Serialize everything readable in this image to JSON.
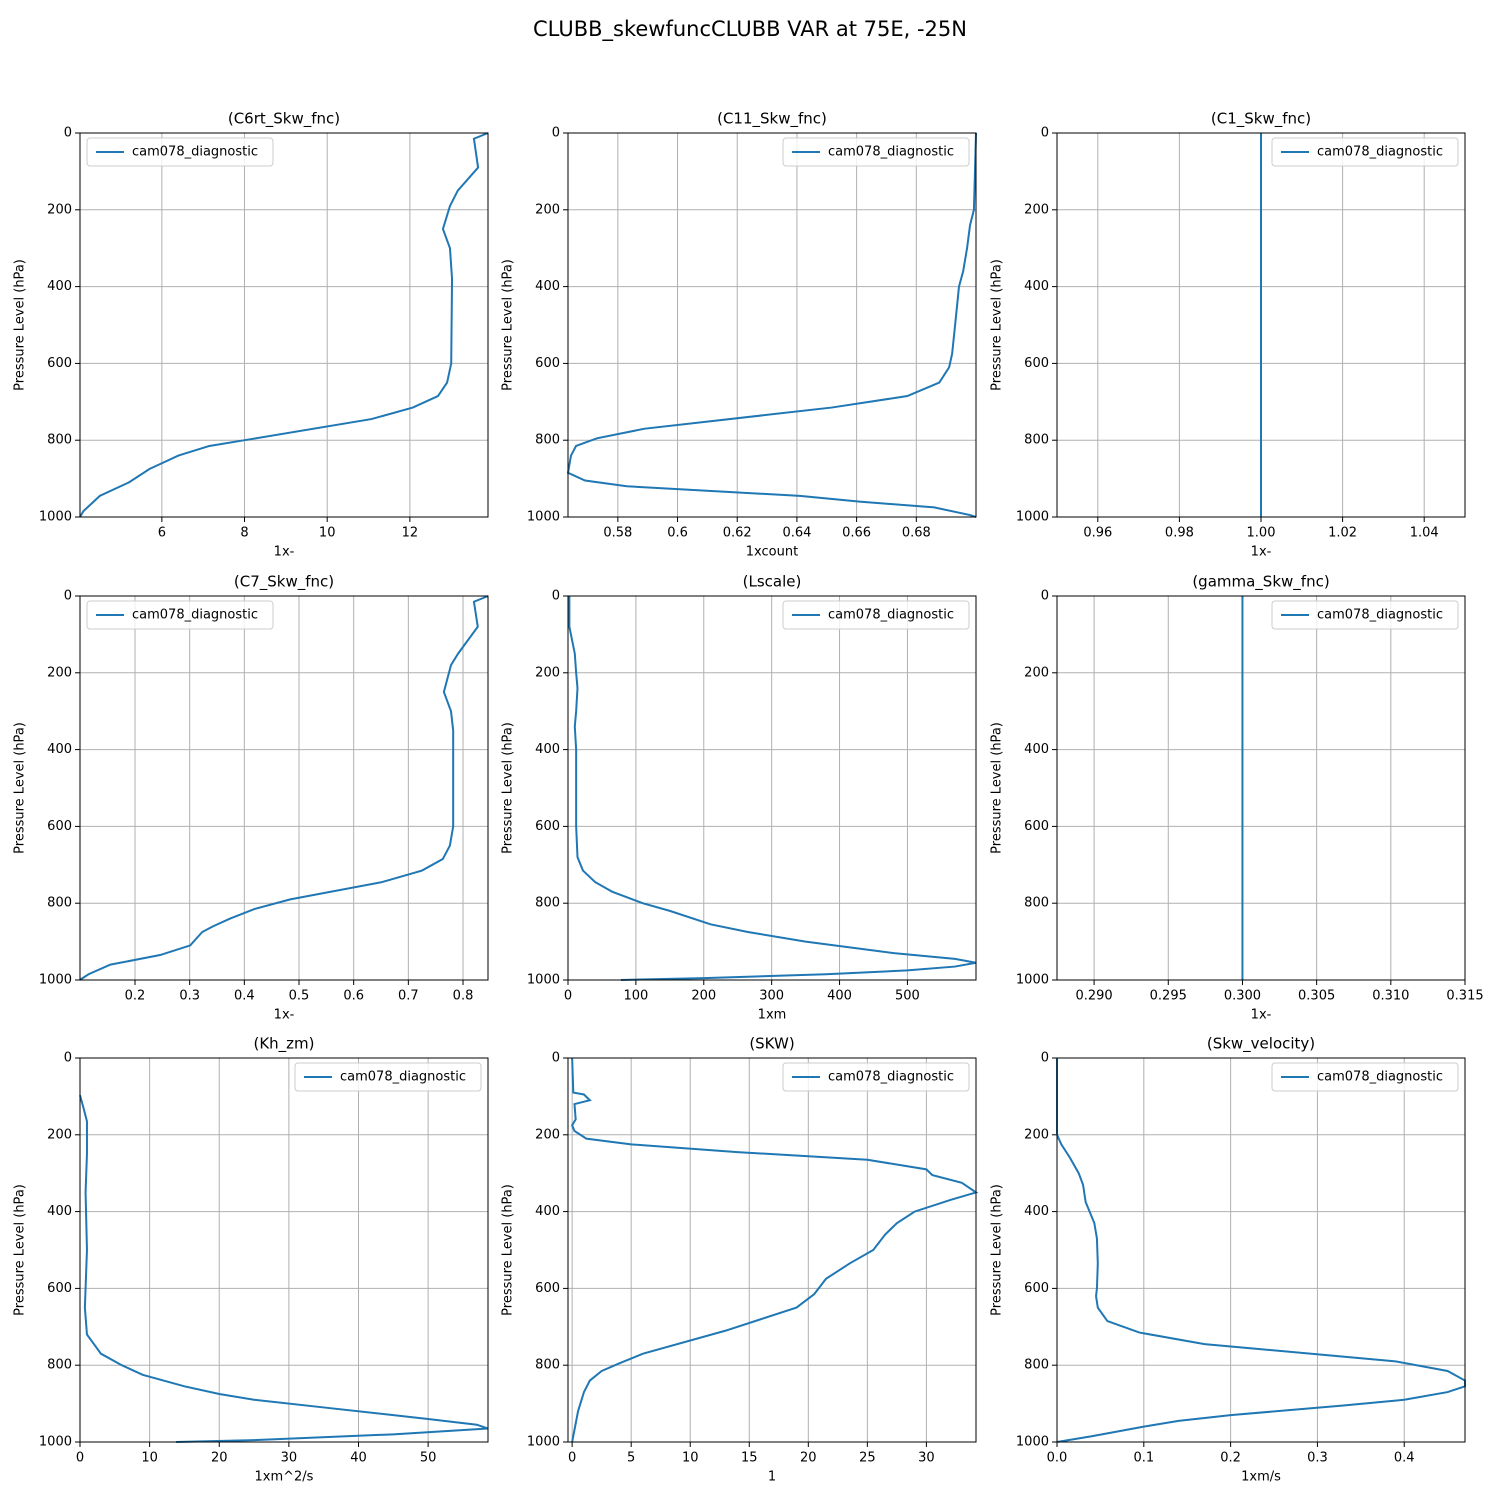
{
  "title": "CLUBB_skewfuncCLUBB VAR at 75E, -25N",
  "chart_data": [
    {
      "type": "line",
      "title": "(C6rt_Skw_fnc)",
      "xlabel": "1x-",
      "ylabel": "Pressure Level (hPa)",
      "legend": "upper left",
      "grid": true,
      "y_inverted": true,
      "xlim": [
        4.02,
        13.89
      ],
      "xticks": [
        6,
        8,
        10,
        12
      ],
      "ylim": [
        0,
        1000
      ],
      "yticks": [
        0,
        200,
        400,
        600,
        800,
        1000
      ],
      "y": [
        0,
        15,
        90,
        150,
        190,
        250,
        300,
        380,
        600,
        650,
        685,
        715,
        745,
        800,
        815,
        840,
        860,
        875,
        910,
        945,
        985,
        1000
      ],
      "series": [
        {
          "name": "cam078_diagnostic",
          "color": "#1f77b4",
          "values": [
            13.89,
            13.55,
            13.65,
            13.16,
            12.97,
            12.8,
            12.97,
            13.02,
            13.0,
            12.9,
            12.68,
            12.07,
            11.07,
            8.0,
            7.15,
            6.4,
            6.0,
            5.7,
            5.2,
            4.5,
            4.1,
            4.02
          ]
        }
      ]
    },
    {
      "type": "line",
      "title": "(C11_Skw_fnc)",
      "xlabel": "1xcount",
      "ylabel": "Pressure Level (hPa)",
      "legend": "upper right",
      "grid": true,
      "y_inverted": true,
      "xlim": [
        0.5633,
        0.7
      ],
      "xticks": [
        0.58,
        0.6,
        0.62,
        0.64,
        0.66,
        0.68
      ],
      "ylim": [
        0,
        1000
      ],
      "yticks": [
        0,
        200,
        400,
        600,
        800,
        1000
      ],
      "y": [
        0,
        200,
        240,
        300,
        360,
        400,
        500,
        575,
        610,
        650,
        685,
        715,
        770,
        795,
        815,
        840,
        885,
        905,
        920,
        945,
        960,
        975,
        995,
        1000
      ],
      "series": [
        {
          "name": "cam078_diagnostic",
          "color": "#1f77b4",
          "values": [
            0.7,
            0.6993,
            0.698,
            0.697,
            0.6957,
            0.6943,
            0.693,
            0.692,
            0.691,
            0.6877,
            0.677,
            0.6516,
            0.589,
            0.573,
            0.566,
            0.5643,
            0.5633,
            0.569,
            0.583,
            0.641,
            0.661,
            0.686,
            0.698,
            0.7
          ]
        }
      ]
    },
    {
      "type": "line",
      "title": "(C1_Skw_fnc)",
      "xlabel": "1x-",
      "ylabel": "Pressure Level (hPa)",
      "legend": "upper right",
      "grid": true,
      "y_inverted": true,
      "xlim": [
        0.95,
        1.05
      ],
      "xticks": [
        0.96,
        0.98,
        {
          "value": 1.0,
          "label": "1.00"
        },
        1.02,
        1.04
      ],
      "ylim": [
        0,
        1000
      ],
      "yticks": [
        0,
        200,
        400,
        600,
        800,
        1000
      ],
      "y": [
        0,
        500,
        1000
      ],
      "series": [
        {
          "name": "cam078_diagnostic",
          "color": "#1f77b4",
          "values": [
            1.0,
            1.0,
            1.0
          ]
        }
      ]
    },
    {
      "type": "line",
      "title": "(C7_Skw_fnc)",
      "xlabel": "1x-",
      "ylabel": "Pressure Level (hPa)",
      "legend": "upper left",
      "grid": true,
      "y_inverted": true,
      "xlim": [
        0.0994,
        0.8457
      ],
      "xticks": [
        0.2,
        0.3,
        0.4,
        0.5,
        0.6,
        0.7,
        0.8
      ],
      "ylim": [
        0,
        1000
      ],
      "yticks": [
        0,
        200,
        400,
        600,
        800,
        1000
      ],
      "y": [
        0,
        15,
        80,
        150,
        180,
        250,
        300,
        350,
        600,
        650,
        685,
        715,
        745,
        790,
        815,
        840,
        860,
        875,
        910,
        935,
        960,
        985,
        1000
      ],
      "series": [
        {
          "name": "cam078_diagnostic",
          "color": "#1f77b4",
          "values": [
            0.846,
            0.82,
            0.827,
            0.791,
            0.778,
            0.765,
            0.778,
            0.782,
            0.782,
            0.776,
            0.763,
            0.725,
            0.652,
            0.484,
            0.419,
            0.374,
            0.343,
            0.323,
            0.301,
            0.246,
            0.155,
            0.115,
            0.099
          ]
        }
      ]
    },
    {
      "type": "line",
      "title": "(Lscale)",
      "xlabel": "1xm",
      "ylabel": "Pressure Level (hPa)",
      "legend": "upper right",
      "grid": true,
      "y_inverted": true,
      "xlim": [
        0,
        601
      ],
      "xticks": [
        0,
        100,
        200,
        300,
        400,
        500
      ],
      "ylim": [
        0,
        1000
      ],
      "yticks": [
        0,
        200,
        400,
        600,
        800,
        1000
      ],
      "y": [
        0,
        80,
        150,
        200,
        240,
        300,
        340,
        400,
        600,
        680,
        715,
        745,
        770,
        800,
        820,
        855,
        875,
        900,
        930,
        945,
        955,
        965,
        975,
        985,
        995,
        1000
      ],
      "series": [
        {
          "name": "cam078_diagnostic",
          "color": "#1f77b4",
          "values": [
            2,
            2,
            10,
            12,
            14,
            12,
            10,
            12,
            12,
            14,
            22,
            40,
            65,
            110,
            150,
            210,
            265,
            350,
            480,
            570,
            601,
            570,
            500,
            380,
            200,
            78
          ]
        }
      ]
    },
    {
      "type": "line",
      "title": "(gamma_Skw_fnc)",
      "xlabel": "1x-",
      "ylabel": "Pressure Level (hPa)",
      "legend": "upper right",
      "grid": true,
      "y_inverted": true,
      "xlim": [
        0.2875,
        0.315
      ],
      "xticks": [
        {
          "value": 0.29,
          "label": "0.290"
        },
        0.295,
        {
          "value": 0.3,
          "label": "0.300"
        },
        0.305,
        {
          "value": 0.31,
          "label": "0.310"
        },
        0.315
      ],
      "ylim": [
        0,
        1000
      ],
      "yticks": [
        0,
        200,
        400,
        600,
        800,
        1000
      ],
      "y": [
        0,
        500,
        1000
      ],
      "series": [
        {
          "name": "cam078_diagnostic",
          "color": "#1f77b4",
          "values": [
            0.3,
            0.3,
            0.3
          ]
        }
      ]
    },
    {
      "type": "line",
      "title": "(Kh_zm)",
      "xlabel": "1xm^2/s",
      "ylabel": "Pressure Level (hPa)",
      "legend": "upper right",
      "grid": true,
      "y_inverted": true,
      "xlim": [
        0,
        58.6
      ],
      "xticks": [
        0,
        10,
        20,
        30,
        40,
        50
      ],
      "ylim": [
        0,
        1000
      ],
      "yticks": [
        0,
        200,
        400,
        600,
        800,
        1000
      ],
      "y": [
        97,
        130,
        165,
        200,
        250,
        350,
        500,
        650,
        720,
        745,
        770,
        800,
        825,
        855,
        875,
        890,
        910,
        940,
        955,
        965,
        980,
        995,
        1000
      ],
      "series": [
        {
          "name": "cam078_diagnostic",
          "color": "#1f77b4",
          "values": [
            0,
            0.5,
            1,
            1,
            1,
            0.8,
            1,
            0.7,
            1,
            2,
            3,
            6,
            9,
            15,
            20,
            25,
            35,
            50,
            57,
            58.6,
            45,
            25,
            13.8
          ]
        }
      ]
    },
    {
      "type": "line",
      "title": "(SKW)",
      "xlabel": "1",
      "ylabel": "Pressure Level (hPa)",
      "legend": "upper right",
      "grid": true,
      "y_inverted": true,
      "xlim": [
        -0.35,
        34.2
      ],
      "xticks": [
        0,
        5,
        10,
        15,
        20,
        25,
        30
      ],
      "ylim": [
        0,
        1000
      ],
      "yticks": [
        0,
        200,
        400,
        600,
        800,
        1000
      ],
      "y": [
        0,
        90,
        95,
        110,
        120,
        160,
        175,
        190,
        210,
        225,
        245,
        265,
        290,
        305,
        325,
        350,
        370,
        400,
        430,
        460,
        500,
        535,
        575,
        615,
        650,
        680,
        710,
        770,
        795,
        815,
        840,
        870,
        920,
        1000
      ],
      "series": [
        {
          "name": "cam078_diagnostic",
          "color": "#1f77b4",
          "values": [
            0.0,
            0.1,
            1.0,
            1.5,
            0.2,
            0.3,
            0.0,
            0.2,
            1.2,
            5,
            14,
            25,
            30,
            30.5,
            33,
            34.2,
            32,
            29,
            27.5,
            26.5,
            25.5,
            23.5,
            21.5,
            20.5,
            19,
            16,
            13,
            6,
            4,
            2.5,
            1.5,
            1,
            0.5,
            0.0
          ]
        }
      ]
    },
    {
      "type": "line",
      "title": "(Skw_velocity)",
      "xlabel": "1xm/s",
      "ylabel": "Pressure Level (hPa)",
      "legend": "upper right",
      "grid": true,
      "y_inverted": true,
      "xlim": [
        0,
        0.47
      ],
      "xticks": [
        {
          "value": 0,
          "label": "0.0"
        },
        0.1,
        0.2,
        0.3,
        0.4
      ],
      "ylim": [
        0,
        1000
      ],
      "yticks": [
        0,
        200,
        400,
        600,
        800,
        1000
      ],
      "y": [
        0,
        200,
        225,
        260,
        300,
        330,
        375,
        430,
        470,
        535,
        600,
        620,
        650,
        685,
        715,
        745,
        790,
        815,
        840,
        855,
        870,
        890,
        905,
        930,
        945,
        960,
        985,
        1000
      ],
      "series": [
        {
          "name": "cam078_diagnostic",
          "color": "#1f77b4",
          "values": [
            0.0,
            0.0,
            0.005,
            0.015,
            0.025,
            0.03,
            0.033,
            0.043,
            0.046,
            0.047,
            0.046,
            0.045,
            0.047,
            0.058,
            0.095,
            0.17,
            0.39,
            0.45,
            0.47,
            0.47,
            0.45,
            0.4,
            0.33,
            0.2,
            0.14,
            0.1,
            0.04,
            0.0
          ]
        }
      ]
    }
  ]
}
